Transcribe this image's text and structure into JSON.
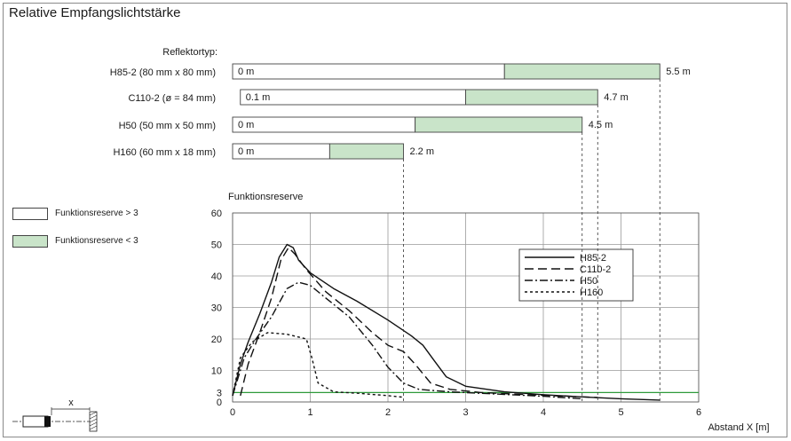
{
  "title": "Relative Empfangslichtstärke",
  "range_chart": {
    "heading": "Reflektortyp:",
    "fill_color": "#c9e4c9",
    "items": [
      {
        "label": "H85-2 (80 mm x 80 mm)",
        "min_text": "0 m",
        "min": 0,
        "reserve_limit": 3.5,
        "max": 5.5,
        "max_text": "5.5 m"
      },
      {
        "label": "C110-2 (ø = 84 mm)",
        "min_text": "0.1 m",
        "min": 0.1,
        "reserve_limit": 3.0,
        "max": 4.7,
        "max_text": "4.7 m"
      },
      {
        "label": "H50 (50 mm x 50 mm)",
        "min_text": "0 m",
        "min": 0,
        "reserve_limit": 2.35,
        "max": 4.5,
        "max_text": "4.5 m"
      },
      {
        "label": "H160 (60 mm x 18 mm)",
        "min_text": "0 m",
        "min": 0,
        "reserve_limit": 1.25,
        "max": 2.2,
        "max_text": "2.2 m"
      }
    ]
  },
  "legend": {
    "white": "Funktionsreserve > 3",
    "green": "Funktionsreserve < 3"
  },
  "chart_data": {
    "type": "line",
    "ylabel": "Funktionsreserve",
    "xlabel": "Abstand X [m]",
    "xlim": [
      0,
      6
    ],
    "ylim": [
      0,
      60
    ],
    "x_ticks": [
      "0",
      "1",
      "2",
      "3",
      "4",
      "5",
      "6"
    ],
    "y_ticks": [
      "0",
      "3",
      "10",
      "20",
      "30",
      "40",
      "50",
      "60"
    ],
    "threshold": {
      "value": 3,
      "color": "#2e9a3a"
    },
    "grid": true,
    "legend_position": "top-right",
    "series": [
      {
        "name": "H85-2",
        "dash": "",
        "points": [
          [
            0,
            2
          ],
          [
            0.1,
            12
          ],
          [
            0.2,
            19
          ],
          [
            0.35,
            28
          ],
          [
            0.5,
            38
          ],
          [
            0.6,
            46
          ],
          [
            0.7,
            50
          ],
          [
            0.78,
            49
          ],
          [
            0.85,
            45
          ],
          [
            1.0,
            41
          ],
          [
            1.3,
            36
          ],
          [
            1.6,
            32
          ],
          [
            2.0,
            26
          ],
          [
            2.3,
            21
          ],
          [
            2.45,
            18
          ],
          [
            2.6,
            13
          ],
          [
            2.75,
            8
          ],
          [
            3.0,
            5
          ],
          [
            3.5,
            3.2
          ],
          [
            4.0,
            2.3
          ],
          [
            4.5,
            1.6
          ],
          [
            5.0,
            1.0
          ],
          [
            5.5,
            0.6
          ]
        ]
      },
      {
        "name": "C110-2",
        "dash": "10,5",
        "points": [
          [
            0.1,
            2
          ],
          [
            0.2,
            12
          ],
          [
            0.35,
            22
          ],
          [
            0.5,
            33
          ],
          [
            0.62,
            45
          ],
          [
            0.72,
            49
          ],
          [
            0.8,
            47
          ],
          [
            0.95,
            42
          ],
          [
            1.2,
            35
          ],
          [
            1.5,
            29
          ],
          [
            1.8,
            22
          ],
          [
            2.0,
            18
          ],
          [
            2.2,
            16
          ],
          [
            2.35,
            12
          ],
          [
            2.55,
            6
          ],
          [
            2.8,
            4
          ],
          [
            3.2,
            3
          ],
          [
            3.8,
            2.3
          ],
          [
            4.3,
            1.8
          ],
          [
            4.7,
            1.4
          ]
        ]
      },
      {
        "name": "H50",
        "dash": "9,3,2,3",
        "points": [
          [
            0,
            2
          ],
          [
            0.15,
            14
          ],
          [
            0.3,
            20
          ],
          [
            0.5,
            27
          ],
          [
            0.7,
            36
          ],
          [
            0.85,
            38
          ],
          [
            1.0,
            37
          ],
          [
            1.2,
            33
          ],
          [
            1.5,
            27
          ],
          [
            1.8,
            18
          ],
          [
            2.0,
            11
          ],
          [
            2.2,
            6
          ],
          [
            2.4,
            4
          ],
          [
            2.8,
            3.2
          ],
          [
            3.5,
            2.4
          ],
          [
            4.0,
            1.8
          ],
          [
            4.5,
            1.0
          ]
        ]
      },
      {
        "name": "H160",
        "dash": "3,3",
        "points": [
          [
            0,
            2
          ],
          [
            0.1,
            14
          ],
          [
            0.25,
            19
          ],
          [
            0.45,
            22
          ],
          [
            0.7,
            21.5
          ],
          [
            0.95,
            20
          ],
          [
            1.02,
            14
          ],
          [
            1.1,
            6
          ],
          [
            1.3,
            3.2
          ],
          [
            1.6,
            2.8
          ],
          [
            2.0,
            2
          ],
          [
            2.2,
            1.5
          ]
        ]
      }
    ]
  }
}
